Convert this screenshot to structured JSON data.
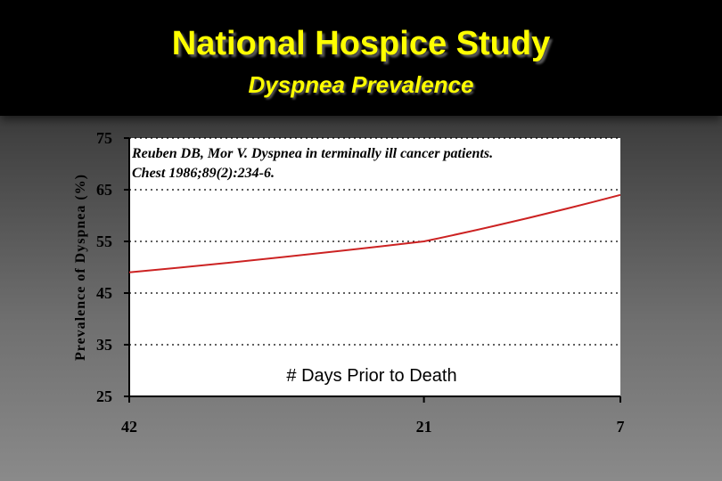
{
  "header": {
    "title": "National Hospice Study",
    "subtitle": "Dyspnea Prevalence"
  },
  "chart_data": {
    "type": "line",
    "ylabel": "Prevalence of Dyspnea (%)",
    "xlabel": "# Days Prior to Death",
    "annotation": [
      "Reuben DB, Mor V. Dyspnea in terminally ill cancer patients.",
      "Chest 1986;89(2):234-6."
    ],
    "x_categories": [
      "42",
      "21",
      "7"
    ],
    "y_ticks": [
      "75",
      "65",
      "55",
      "45",
      "35",
      "25"
    ],
    "ylim": [
      25,
      75
    ],
    "grid": "horizontal dotted",
    "series": [
      {
        "values": [
          49,
          55,
          64
        ],
        "color": "#cc2222"
      }
    ]
  }
}
